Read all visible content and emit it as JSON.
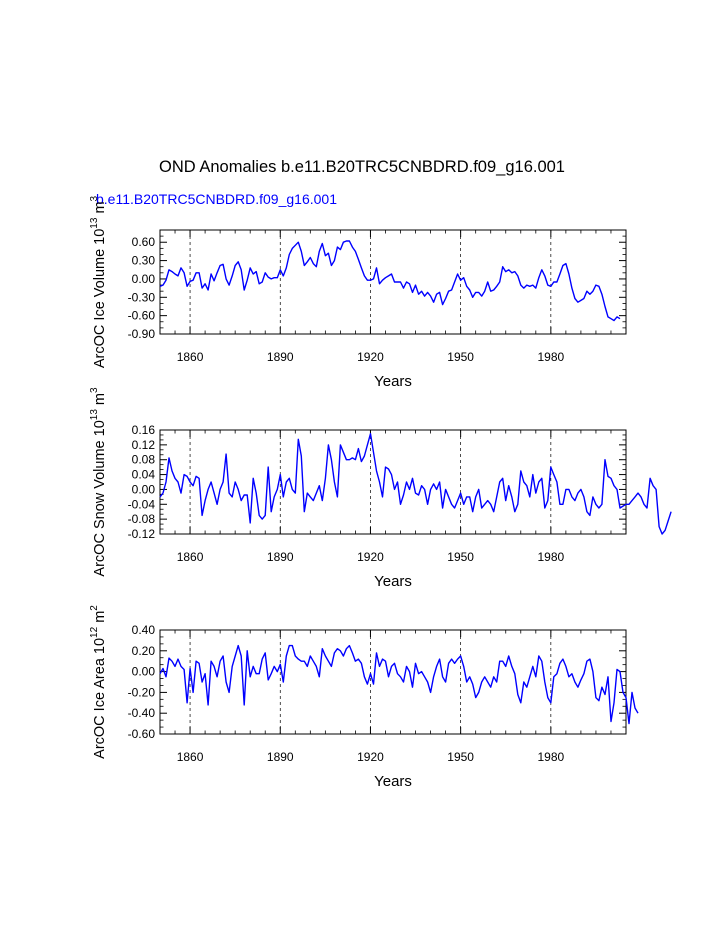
{
  "title": "OND Anomalies b.e11.B20TRC5CNBDRD.f09_g16.001",
  "subtitle": "b.e11.B20TRC5CNBDRD.f09_g16.001",
  "line_color": "#0000ff",
  "chart_data": [
    {
      "type": "line",
      "title": "",
      "xlabel": "Years",
      "ylabel_main": "ArcOC Ice Volume 10",
      "ylabel_exp1": "13",
      "ylabel_unit": " m",
      "ylabel_exp2": "3",
      "xlim": [
        1850,
        2005
      ],
      "ylim": [
        -0.9,
        0.8
      ],
      "x_ticks": [
        1860,
        1890,
        1920,
        1950,
        1980
      ],
      "x_tick_labels": [
        "1860",
        "1890",
        "1920",
        "1950",
        "1980"
      ],
      "y_ticks": [
        -0.9,
        -0.6,
        -0.3,
        0.0,
        0.3,
        0.6
      ],
      "y_tick_labels": [
        "-0.90",
        "-0.60",
        "-0.30",
        "0.00",
        "0.30",
        "0.60"
      ],
      "series": [
        {
          "name": "ArcOC Ice Volume",
          "x_start": 1850,
          "values": [
            -0.12,
            -0.1,
            -0.02,
            0.15,
            0.12,
            0.08,
            0.05,
            0.18,
            0.1,
            -0.12,
            -0.04,
            -0.02,
            0.1,
            0.1,
            -0.15,
            -0.08,
            -0.18,
            0.08,
            -0.03,
            0.1,
            0.22,
            0.24,
            0.0,
            -0.1,
            0.05,
            0.22,
            0.28,
            0.15,
            -0.18,
            -0.02,
            0.18,
            0.08,
            0.12,
            -0.08,
            -0.05,
            0.1,
            0.03,
            0.0,
            0.02,
            0.02,
            0.15,
            0.05,
            0.18,
            0.4,
            0.5,
            0.55,
            0.6,
            0.45,
            0.22,
            0.28,
            0.35,
            0.25,
            0.2,
            0.45,
            0.58,
            0.38,
            0.42,
            0.22,
            0.3,
            0.52,
            0.48,
            0.6,
            0.62,
            0.62,
            0.52,
            0.45,
            0.32,
            0.18,
            0.05,
            -0.02,
            -0.02,
            0.0,
            0.18,
            -0.08,
            -0.02,
            0.02,
            0.05,
            0.08,
            -0.05,
            -0.05,
            -0.05,
            -0.15,
            -0.05,
            -0.08,
            -0.22,
            -0.1,
            -0.25,
            -0.2,
            -0.28,
            -0.22,
            -0.28,
            -0.38,
            -0.25,
            -0.22,
            -0.42,
            -0.32,
            -0.2,
            -0.18,
            -0.05,
            0.08,
            -0.02,
            0.02,
            -0.12,
            -0.18,
            -0.3,
            -0.22,
            -0.22,
            -0.28,
            -0.2,
            -0.05,
            -0.2,
            -0.18,
            -0.12,
            -0.05,
            0.2,
            0.12,
            0.15,
            0.1,
            0.12,
            0.05,
            -0.1,
            -0.15,
            -0.1,
            -0.12,
            -0.1,
            -0.15,
            0.02,
            0.15,
            0.05,
            -0.1,
            -0.12,
            -0.05,
            -0.05,
            0.08,
            0.22,
            0.25,
            0.08,
            -0.15,
            -0.32,
            -0.38,
            -0.35,
            -0.32,
            -0.2,
            -0.25,
            -0.2,
            -0.1,
            -0.12,
            -0.25,
            -0.45,
            -0.62,
            -0.65,
            -0.68,
            -0.62,
            -0.65
          ]
        }
      ]
    },
    {
      "type": "line",
      "title": "",
      "xlabel": "Years",
      "ylabel_main": "ArcOC Snow Volume 10",
      "ylabel_exp1": "13",
      "ylabel_unit": " m",
      "ylabel_exp2": "3",
      "xlim": [
        1850,
        2005
      ],
      "ylim": [
        -0.12,
        0.16
      ],
      "x_ticks": [
        1860,
        1890,
        1920,
        1950,
        1980
      ],
      "x_tick_labels": [
        "1860",
        "1890",
        "1920",
        "1950",
        "1980"
      ],
      "y_ticks": [
        -0.12,
        -0.08,
        -0.04,
        0.0,
        0.04,
        0.08,
        0.12,
        0.16
      ],
      "y_tick_labels": [
        "-0.12",
        "-0.08",
        "-0.04",
        "0.00",
        "0.04",
        "0.08",
        "0.12",
        "0.16"
      ],
      "series": [
        {
          "name": "ArcOC Snow Volume",
          "x_start": 1850,
          "values": [
            -0.02,
            -0.01,
            0.02,
            0.085,
            0.05,
            0.03,
            0.02,
            -0.01,
            0.04,
            0.035,
            0.02,
            0.01,
            0.035,
            0.03,
            -0.07,
            -0.03,
            0.0,
            0.02,
            -0.01,
            -0.04,
            0.0,
            0.02,
            0.095,
            -0.01,
            -0.02,
            0.02,
            0.0,
            -0.03,
            -0.015,
            -0.015,
            -0.09,
            0.03,
            -0.01,
            -0.07,
            -0.08,
            -0.07,
            0.06,
            -0.06,
            -0.02,
            0.0,
            0.04,
            -0.02,
            0.02,
            0.03,
            0.0,
            -0.01,
            0.135,
            0.09,
            -0.06,
            -0.01,
            -0.02,
            -0.03,
            -0.01,
            0.01,
            -0.03,
            0.03,
            0.12,
            0.08,
            0.02,
            -0.02,
            0.12,
            0.1,
            0.08,
            0.08,
            0.085,
            0.08,
            0.11,
            0.075,
            0.09,
            0.12,
            0.15,
            0.1,
            0.05,
            0.02,
            -0.02,
            0.06,
            0.055,
            0.04,
            0.0,
            0.02,
            -0.04,
            -0.015,
            0.02,
            0.0,
            0.03,
            -0.01,
            -0.015,
            0.01,
            0.0,
            -0.04,
            0.0,
            0.015,
            0.0,
            0.02,
            -0.05,
            0.0,
            -0.02,
            -0.04,
            -0.05,
            -0.03,
            -0.01,
            -0.04,
            -0.02,
            -0.02,
            -0.06,
            -0.02,
            0.0,
            -0.05,
            -0.04,
            -0.03,
            -0.04,
            -0.06,
            -0.02,
            0.02,
            0.03,
            -0.03,
            0.01,
            -0.02,
            -0.06,
            -0.04,
            0.05,
            0.02,
            0.01,
            -0.02,
            0.04,
            -0.01,
            0.02,
            0.03,
            -0.05,
            -0.03,
            0.06,
            0.04,
            0.02,
            -0.04,
            -0.04,
            0.0,
            0.0,
            -0.02,
            -0.03,
            -0.01,
            0.0,
            -0.02,
            -0.06,
            -0.07,
            -0.02,
            -0.04,
            -0.05,
            -0.04,
            0.08,
            0.035,
            0.03,
            0.01,
            0.0,
            -0.05,
            -0.045,
            -0.04,
            -0.04,
            -0.03,
            -0.02,
            -0.01,
            -0.02,
            -0.04,
            -0.05,
            0.03,
            0.01,
            0.0,
            -0.1,
            -0.12,
            -0.11,
            -0.085,
            -0.06
          ]
        }
      ]
    },
    {
      "type": "line",
      "title": "",
      "xlabel": "Years",
      "ylabel_main": "ArcOC Ice Area 10",
      "ylabel_exp1": "12",
      "ylabel_unit": " m",
      "ylabel_exp2": "2",
      "xlim": [
        1850,
        2005
      ],
      "ylim": [
        -0.6,
        0.4
      ],
      "x_ticks": [
        1860,
        1890,
        1920,
        1950,
        1980
      ],
      "x_tick_labels": [
        "1860",
        "1890",
        "1920",
        "1950",
        "1980"
      ],
      "y_ticks": [
        -0.6,
        -0.4,
        -0.2,
        0.0,
        0.2,
        0.4
      ],
      "y_tick_labels": [
        "-0.60",
        "-0.40",
        "-0.20",
        "0.00",
        "0.20",
        "0.40"
      ],
      "series": [
        {
          "name": "ArcOC Ice Area",
          "x_start": 1850,
          "values": [
            -0.02,
            0.03,
            -0.05,
            0.13,
            0.1,
            0.05,
            0.12,
            0.05,
            0.02,
            -0.3,
            0.03,
            -0.2,
            0.1,
            0.08,
            -0.1,
            -0.02,
            -0.32,
            0.1,
            0.05,
            -0.05,
            0.1,
            0.15,
            -0.1,
            -0.2,
            0.05,
            0.15,
            0.25,
            0.15,
            -0.32,
            0.2,
            -0.05,
            0.05,
            -0.02,
            -0.02,
            0.12,
            0.18,
            -0.08,
            -0.02,
            0.05,
            0.0,
            0.07,
            -0.1,
            0.15,
            0.25,
            0.25,
            0.15,
            0.12,
            0.1,
            0.1,
            0.05,
            0.15,
            0.1,
            0.05,
            -0.05,
            0.22,
            0.15,
            0.1,
            0.05,
            0.18,
            0.22,
            0.2,
            0.15,
            0.22,
            0.25,
            0.18,
            0.1,
            0.12,
            0.08,
            -0.05,
            -0.12,
            -0.02,
            -0.12,
            0.18,
            0.05,
            0.12,
            0.1,
            -0.05,
            0.05,
            0.08,
            -0.02,
            -0.05,
            -0.1,
            0.05,
            0.0,
            -0.15,
            0.08,
            -0.02,
            0.0,
            -0.05,
            -0.1,
            -0.2,
            -0.05,
            0.05,
            0.12,
            -0.05,
            -0.1,
            0.08,
            0.12,
            0.08,
            0.12,
            0.15,
            0.05,
            -0.1,
            -0.05,
            -0.12,
            -0.25,
            -0.2,
            -0.1,
            -0.05,
            -0.1,
            -0.15,
            -0.05,
            -0.1,
            0.1,
            0.1,
            0.05,
            0.15,
            0.05,
            -0.02,
            -0.22,
            -0.3,
            -0.1,
            -0.15,
            -0.05,
            0.05,
            -0.05,
            0.15,
            0.1,
            -0.1,
            -0.25,
            -0.3,
            -0.05,
            -0.02,
            0.08,
            0.12,
            0.05,
            -0.05,
            -0.02,
            -0.1,
            -0.15,
            -0.08,
            -0.02,
            0.1,
            0.12,
            0.0,
            -0.25,
            -0.28,
            -0.15,
            -0.22,
            -0.05,
            -0.48,
            -0.3,
            0.02,
            0.0,
            -0.2,
            -0.25,
            -0.5,
            -0.2,
            -0.35,
            -0.4
          ]
        }
      ]
    }
  ]
}
